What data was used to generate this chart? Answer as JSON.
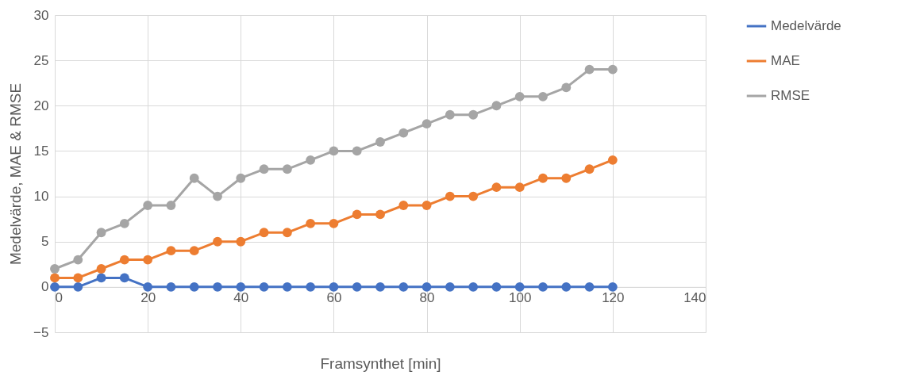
{
  "chart_data": {
    "type": "line",
    "xlabel": "Framsynthet [min]",
    "ylabel": "Medelvärde, MAE & RMSE",
    "x": [
      0,
      5,
      10,
      15,
      20,
      25,
      30,
      35,
      40,
      45,
      50,
      55,
      60,
      65,
      70,
      75,
      80,
      85,
      90,
      95,
      100,
      105,
      110,
      115,
      120
    ],
    "series": [
      {
        "name": "Medelvärde",
        "color": "#4472c4",
        "values": [
          0,
          0,
          1,
          1,
          0,
          0,
          0,
          0,
          0,
          0,
          0,
          0,
          0,
          0,
          0,
          0,
          0,
          0,
          0,
          0,
          0,
          0,
          0,
          0,
          0
        ]
      },
      {
        "name": "MAE",
        "color": "#ed7d31",
        "values": [
          1,
          1,
          2,
          3,
          3,
          4,
          4,
          5,
          5,
          6,
          6,
          7,
          7,
          8,
          8,
          9,
          9,
          10,
          10,
          11,
          11,
          12,
          12,
          13,
          14
        ]
      },
      {
        "name": "RMSE",
        "color": "#a5a5a5",
        "values": [
          2,
          3,
          6,
          7,
          9,
          9,
          12,
          10,
          12,
          13,
          13,
          14,
          15,
          15,
          16,
          17,
          18,
          19,
          19,
          20,
          21,
          21,
          22,
          24,
          24
        ]
      }
    ],
    "xlim": [
      0,
      140
    ],
    "xticks": [
      0,
      20,
      40,
      60,
      80,
      100,
      120,
      140
    ],
    "ylim": [
      -5,
      30
    ],
    "yticks": [
      -5,
      0,
      5,
      10,
      15,
      20,
      25,
      30
    ],
    "grid": true,
    "legend": "right",
    "marker": "circle"
  }
}
